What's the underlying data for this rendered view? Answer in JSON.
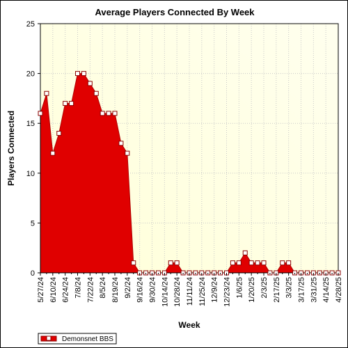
{
  "chart_data": {
    "type": "area",
    "title": "Average Players Connected By Week",
    "xlabel": "Week",
    "ylabel": "Players Connected",
    "ylim": [
      0,
      25
    ],
    "yticks": [
      0,
      5,
      10,
      15,
      20,
      25
    ],
    "grid": true,
    "legend": "bottom-left",
    "x": [
      "5/27/24",
      "6/3/24",
      "6/10/24",
      "6/17/24",
      "6/24/24",
      "7/1/24",
      "7/8/24",
      "7/15/24",
      "7/22/24",
      "7/29/24",
      "8/5/24",
      "8/12/24",
      "8/19/24",
      "8/26/24",
      "9/2/24",
      "9/9/24",
      "9/16/24",
      "9/23/24",
      "9/30/24",
      "10/7/24",
      "10/14/24",
      "10/21/24",
      "10/28/24",
      "11/4/24",
      "11/11/24",
      "11/18/24",
      "11/25/24",
      "12/2/24",
      "12/9/24",
      "12/16/24",
      "12/23/24",
      "12/30/24",
      "1/6/25",
      "1/13/25",
      "1/20/25",
      "1/27/25",
      "2/3/25",
      "2/10/25",
      "2/17/25",
      "2/24/25",
      "3/3/25",
      "3/10/25",
      "3/17/25",
      "3/24/25",
      "3/31/25",
      "4/7/25",
      "4/14/25",
      "4/21/25",
      "4/28/25"
    ],
    "tick_labels": [
      "5/27/24",
      "6/10/24",
      "6/24/24",
      "7/8/24",
      "7/22/24",
      "8/5/24",
      "8/19/24",
      "9/2/24",
      "9/16/24",
      "9/30/24",
      "10/14/24",
      "10/28/24",
      "11/11/24",
      "11/25/24",
      "12/9/24",
      "12/23/24",
      "1/6/25",
      "1/20/25",
      "2/3/25",
      "2/17/25",
      "3/3/25",
      "3/17/25",
      "3/31/25",
      "4/14/25",
      "4/28/25"
    ],
    "series": [
      {
        "name": "Demonsnet BBS",
        "color": "#e00000",
        "values": [
          16,
          18,
          12,
          14,
          17,
          17,
          20,
          20,
          19,
          18,
          16,
          16,
          16,
          13,
          12,
          1,
          0,
          0,
          0,
          0,
          0,
          1,
          1,
          0,
          0,
          0,
          0,
          0,
          0,
          0,
          0,
          1,
          1,
          2,
          1,
          1,
          1,
          0,
          0,
          1,
          1,
          0,
          0,
          0,
          0,
          0,
          0,
          0,
          0
        ]
      }
    ]
  }
}
